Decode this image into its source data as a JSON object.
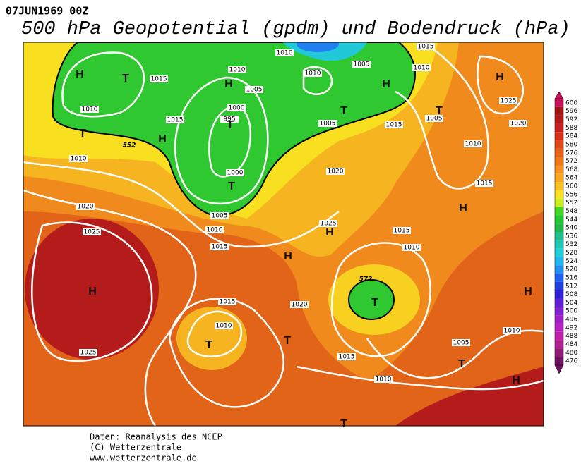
{
  "header": {
    "date": "07JUN1969 00Z",
    "title": "500 hPa Geopotential (gpdm) und Bodendruck (hPa)"
  },
  "map": {
    "isobar_labels": [
      "1015",
      "1010",
      "1010",
      "1010",
      "1005",
      "1000",
      "995",
      "1015",
      "1010",
      "1010",
      "1005",
      "1005",
      "1015",
      "1010",
      "1005",
      "1015",
      "1025",
      "1020",
      "1010",
      "1020",
      "1000",
      "1005",
      "1010",
      "1015",
      "1020",
      "1025",
      "1015",
      "1025",
      "1015",
      "1010",
      "1015",
      "1020",
      "1010",
      "1025",
      "1015",
      "1010",
      "1005",
      "1010"
    ],
    "centers": [
      "H",
      "T",
      "H",
      "T",
      "H",
      "T",
      "T",
      "H",
      "T",
      "T",
      "H",
      "H",
      "H",
      "H",
      "H",
      "T",
      "T",
      "T",
      "H",
      "T",
      "H",
      "T"
    ],
    "contour_labels": [
      "552",
      "572"
    ]
  },
  "colorbar": {
    "levels": [
      600,
      596,
      592,
      588,
      584,
      580,
      576,
      572,
      568,
      564,
      560,
      556,
      552,
      548,
      544,
      540,
      536,
      532,
      528,
      524,
      520,
      516,
      512,
      508,
      504,
      500,
      496,
      492,
      488,
      484,
      480,
      476
    ],
    "colors": [
      "#c8105a",
      "#a01414",
      "#b41818",
      "#c82020",
      "#d83018",
      "#e04818",
      "#e86018",
      "#f07818",
      "#f49020",
      "#f8a820",
      "#f8c020",
      "#f8e020",
      "#c8f020",
      "#40d820",
      "#20c830",
      "#20b848",
      "#20c090",
      "#20c8b8",
      "#20d0d8",
      "#20b8f0",
      "#2090f0",
      "#2060f0",
      "#2040e0",
      "#3020d8",
      "#6020d8",
      "#8020d0",
      "#a020c8",
      "#b820c0",
      "#c020a8",
      "#b02090",
      "#901878",
      "#701060"
    ]
  },
  "footer": [
    "Daten: Reanalysis des NCEP",
    "(C) Wetterzentrale",
    "www.wetterzentrale.de"
  ]
}
